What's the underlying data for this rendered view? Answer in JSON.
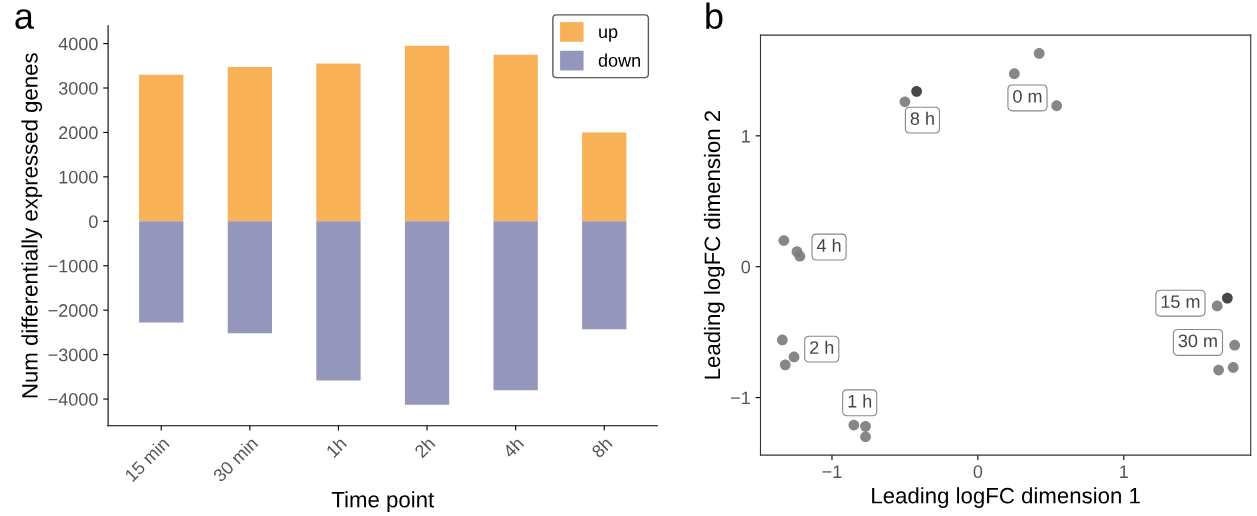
{
  "chart_data": [
    {
      "type": "bar",
      "title": "a",
      "xlabel": "Time point",
      "ylabel": "Num differentially expressed genes",
      "categories": [
        "15 min",
        "30 min",
        "1h",
        "2h",
        "4h",
        "8h"
      ],
      "stacked": true,
      "series": [
        {
          "name": "up",
          "color": "#f9b157",
          "values": [
            3300,
            3470,
            3550,
            3950,
            3750,
            2000
          ]
        },
        {
          "name": "down",
          "color": "#9596bc",
          "values": [
            -2280,
            -2520,
            -3580,
            -4130,
            -3800,
            -2430
          ]
        }
      ],
      "ylim": [
        -4600,
        4400
      ],
      "yticks": [
        {
          "value": -4000,
          "label": "−4000"
        },
        {
          "value": -3000,
          "label": "−3000"
        },
        {
          "value": -2000,
          "label": "−2000"
        },
        {
          "value": -1000,
          "label": "−1000"
        },
        0,
        1000,
        2000,
        3000,
        4000
      ],
      "grid": false,
      "legend": "top right"
    },
    {
      "type": "scatter",
      "title": "b",
      "xlabel": "Leading logFC dimension 1",
      "ylabel": "Leading logFC dimension 2",
      "marker": "circle",
      "grid": false,
      "series": [
        {
          "x": [
            0.25,
            0.42,
            0.54,
            -0.5,
            -0.42,
            -1.33,
            -1.24,
            -1.22,
            1.64,
            1.71,
            1.76,
            1.65,
            1.75,
            -1.34,
            -1.32,
            -1.26,
            -0.85,
            -0.77,
            -0.77
          ],
          "values": [
            1.475,
            1.63,
            1.23,
            1.26,
            1.34,
            0.2,
            0.115,
            0.08,
            -0.3,
            -0.24,
            -0.6,
            -0.79,
            -0.77,
            -0.56,
            -0.75,
            -0.69,
            -1.21,
            -1.22,
            -1.3
          ],
          "colors": [
            "#7a7a7a",
            "#7a7a7a",
            "#7a7a7a",
            "#7a7a7a",
            "#333333",
            "#7a7a7a",
            "#7a7a7a",
            "#7a7a7a",
            "#7a7a7a",
            "#333333",
            "#7a7a7a",
            "#7a7a7a",
            "#7a7a7a",
            "#7a7a7a",
            "#7a7a7a",
            "#7a7a7a",
            "#7a7a7a",
            "#7a7a7a",
            "#7a7a7a"
          ]
        }
      ],
      "annotations": [
        {
          "text": "0 m",
          "x": 0.34,
          "y": 1.29
        },
        {
          "text": "8 h",
          "x": -0.38,
          "y": 1.12
        },
        {
          "text": "4 h",
          "x": -1.02,
          "y": 0.15
        },
        {
          "text": "15 m",
          "x": 1.64,
          "y": -0.3
        },
        {
          "text": "30 m",
          "x": 1.76,
          "y": -0.6
        },
        {
          "text": "2 h",
          "x": -1.07,
          "y": -0.63
        },
        {
          "text": "1 h",
          "x": -0.81,
          "y": -1.04
        }
      ],
      "xlim": [
        -1.49,
        1.87
      ],
      "ylim": [
        -1.44,
        1.77
      ],
      "xticks": [
        {
          "value": -1,
          "label": "−1"
        },
        0,
        1
      ],
      "yticks": [
        {
          "value": -1,
          "label": "−1"
        },
        0,
        1
      ]
    }
  ]
}
